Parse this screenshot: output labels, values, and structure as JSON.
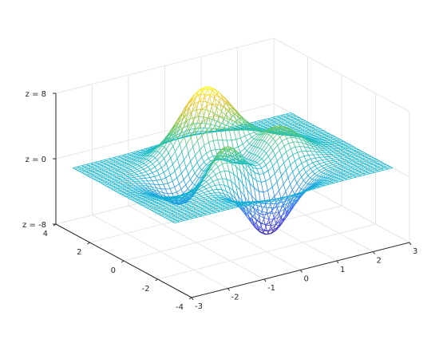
{
  "chart_data": {
    "type": "mesh",
    "function": "peaks",
    "colormap": "parula",
    "grid": true,
    "xlim": [
      -3,
      3
    ],
    "ylim": [
      -4,
      4
    ],
    "zlim": [
      -8,
      8
    ],
    "x_ticks": [
      {
        "value": -3,
        "label": "-3"
      },
      {
        "value": -2,
        "label": "-2"
      },
      {
        "value": -1,
        "label": "-1"
      },
      {
        "value": 0,
        "label": "0"
      },
      {
        "value": 1,
        "label": "1"
      },
      {
        "value": 2,
        "label": "2"
      },
      {
        "value": 3,
        "label": "3"
      }
    ],
    "y_ticks": [
      {
        "value": -4,
        "label": "-4"
      },
      {
        "value": -2,
        "label": "-2"
      },
      {
        "value": 0,
        "label": "0"
      },
      {
        "value": 2,
        "label": "2"
      },
      {
        "value": 4,
        "label": "4"
      }
    ],
    "z_ticks": [
      {
        "value": -8,
        "label": "z = -8"
      },
      {
        "value": 0,
        "label": "z = 0"
      },
      {
        "value": 8,
        "label": "z = 8"
      }
    ],
    "peaks": [
      {
        "x": -0.05,
        "y": 1.6,
        "z": 8.1
      },
      {
        "x": -0.46,
        "y": -0.63,
        "z": 3.8
      },
      {
        "x": 1.3,
        "y": 0.0,
        "z": 3.6
      },
      {
        "x": 0.23,
        "y": -1.63,
        "z": -6.5
      },
      {
        "x": -1.35,
        "y": 0.2,
        "z": -3.0
      }
    ]
  }
}
